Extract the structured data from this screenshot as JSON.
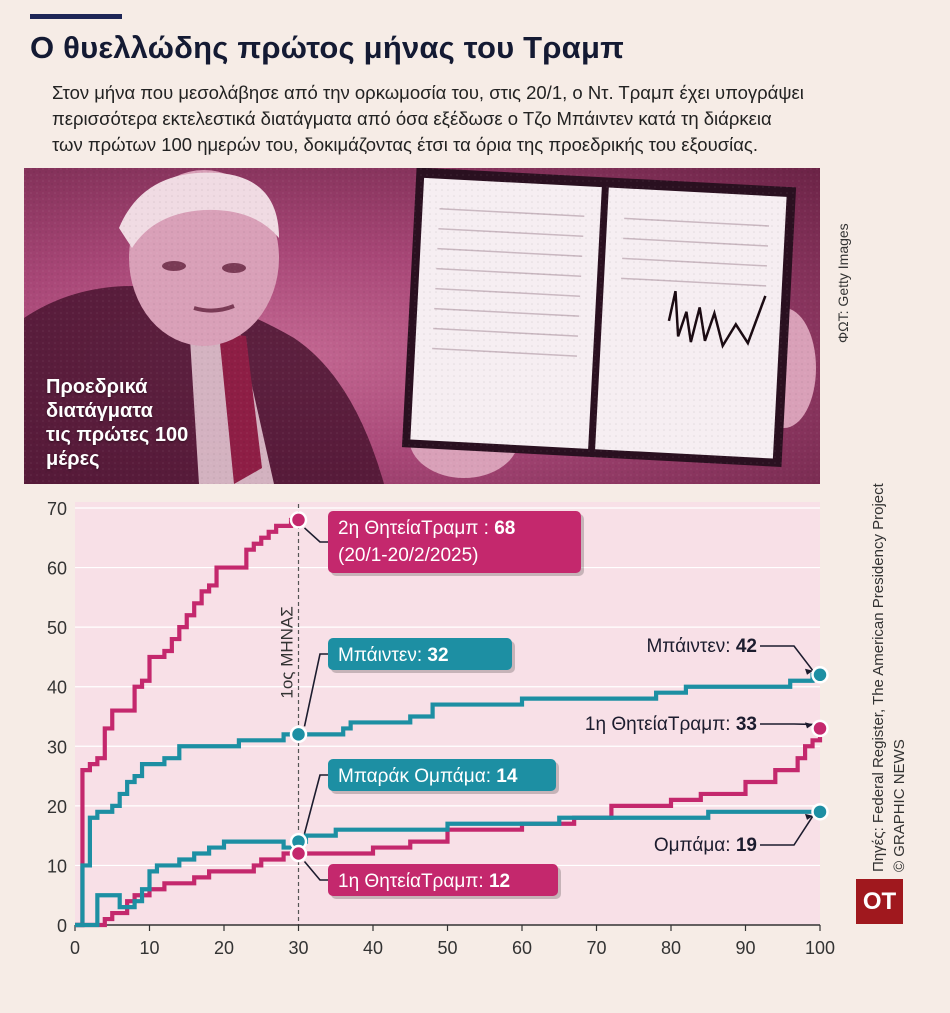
{
  "header": {
    "title": "Ο θυελλώδης πρώτος μήνας του Τραμπ",
    "subtitle_lines": [
      "Στον μήνα που μεσολάβησε από την ορκωμοσία του, στις 20/1, ο Ντ. Τραμπ έχει υπογράψει",
      "περισσότερα εκτελεστικά διατάγματα από όσα εξέδωσε  ο Τζο Μπάιντεν κατά τη διάρκεια",
      "των πρώτων  100 ημερών του, δοκιμάζοντας έτσι τα όρια της προεδρικής του εξουσίας."
    ]
  },
  "photo": {
    "label_lines": [
      "Προεδρικά",
      "διατάγματα",
      "τις πρώτες 100",
      "μέρες"
    ],
    "credit": "ΦΩΤ: Getty Images",
    "signature": "Donald Trump"
  },
  "sources": {
    "line1": "Πηγές: Federal Register, The American Presidency Project",
    "line2": "© GRAPHIC NEWS"
  },
  "logo": "OT",
  "colors": {
    "trump": "#c4286d",
    "teal": "#1d8fa3",
    "dark": "#1d2556",
    "plot_bg": "#f8e0e7"
  },
  "chart_data": {
    "type": "line",
    "xlim": [
      0,
      100
    ],
    "ylim": [
      0,
      70
    ],
    "xticks": [
      0,
      10,
      20,
      30,
      40,
      50,
      60,
      70,
      80,
      90,
      100
    ],
    "yticks": [
      0,
      10,
      20,
      30,
      40,
      50,
      60,
      70
    ],
    "grid": true,
    "marker_line": {
      "x": 30,
      "label": "1ος ΜΗΝΑΣ"
    },
    "series": [
      {
        "key": "trump2",
        "color": "#c4286d",
        "points": [
          [
            0,
            0
          ],
          [
            1,
            26
          ],
          [
            2,
            27
          ],
          [
            3,
            28
          ],
          [
            4,
            33
          ],
          [
            5,
            36
          ],
          [
            7,
            36
          ],
          [
            8,
            40
          ],
          [
            9,
            41
          ],
          [
            10,
            45
          ],
          [
            12,
            46
          ],
          [
            13,
            48
          ],
          [
            14,
            50
          ],
          [
            15,
            52
          ],
          [
            16,
            54
          ],
          [
            17,
            56
          ],
          [
            18,
            57
          ],
          [
            19,
            60
          ],
          [
            22,
            60
          ],
          [
            23,
            63
          ],
          [
            24,
            64
          ],
          [
            25,
            65
          ],
          [
            26,
            66
          ],
          [
            27,
            67
          ],
          [
            29,
            68
          ],
          [
            30,
            68
          ]
        ]
      },
      {
        "key": "biden",
        "color": "#1d8fa3",
        "points": [
          [
            0,
            0
          ],
          [
            1,
            10
          ],
          [
            2,
            18
          ],
          [
            3,
            19
          ],
          [
            5,
            20
          ],
          [
            6,
            22
          ],
          [
            7,
            24
          ],
          [
            8,
            25
          ],
          [
            9,
            27
          ],
          [
            12,
            28
          ],
          [
            14,
            30
          ],
          [
            20,
            30
          ],
          [
            22,
            31
          ],
          [
            27,
            31
          ],
          [
            28,
            32
          ],
          [
            30,
            32
          ],
          [
            36,
            33
          ],
          [
            37,
            34
          ],
          [
            45,
            35
          ],
          [
            48,
            37
          ],
          [
            60,
            38
          ],
          [
            78,
            39
          ],
          [
            82,
            40
          ],
          [
            96,
            41
          ],
          [
            99,
            42
          ],
          [
            100,
            42
          ]
        ]
      },
      {
        "key": "trump1",
        "color": "#c4286d",
        "points": [
          [
            0,
            0
          ],
          [
            3,
            0
          ],
          [
            4,
            1
          ],
          [
            5,
            2
          ],
          [
            7,
            4
          ],
          [
            8,
            5
          ],
          [
            10,
            6
          ],
          [
            11,
            6
          ],
          [
            12,
            7
          ],
          [
            15,
            7
          ],
          [
            16,
            8
          ],
          [
            18,
            9
          ],
          [
            22,
            9
          ],
          [
            24,
            10
          ],
          [
            25,
            11
          ],
          [
            28,
            12
          ],
          [
            30,
            12
          ],
          [
            40,
            13
          ],
          [
            45,
            14
          ],
          [
            50,
            16
          ],
          [
            60,
            17
          ],
          [
            67,
            18
          ],
          [
            72,
            20
          ],
          [
            80,
            21
          ],
          [
            84,
            22
          ],
          [
            90,
            24
          ],
          [
            94,
            26
          ],
          [
            97,
            28
          ],
          [
            98,
            30
          ],
          [
            99,
            31
          ],
          [
            100,
            33
          ]
        ]
      },
      {
        "key": "obama",
        "color": "#1d8fa3",
        "points": [
          [
            0,
            0
          ],
          [
            2,
            0
          ],
          [
            3,
            5
          ],
          [
            5,
            5
          ],
          [
            6,
            3
          ],
          [
            8,
            4
          ],
          [
            9,
            6
          ],
          [
            10,
            9
          ],
          [
            11,
            10
          ],
          [
            14,
            11
          ],
          [
            16,
            12
          ],
          [
            18,
            13
          ],
          [
            20,
            14
          ],
          [
            25,
            14
          ],
          [
            28,
            13
          ],
          [
            30,
            14
          ],
          [
            31,
            15
          ],
          [
            35,
            16
          ],
          [
            45,
            16
          ],
          [
            50,
            17
          ],
          [
            60,
            17
          ],
          [
            65,
            18
          ],
          [
            75,
            18
          ],
          [
            85,
            19
          ],
          [
            100,
            19
          ]
        ]
      }
    ],
    "annotations": [
      {
        "key": "trump2",
        "series": "trump2",
        "x": 30,
        "y": 68,
        "name": "2η ΘητείαΤραμπ : ",
        "value": "68",
        "line2": "(20/1-20/2/2025)",
        "style": "box"
      },
      {
        "key": "biden30",
        "series": "biden",
        "x": 30,
        "y": 32,
        "name": "Μπάιντεν: ",
        "value": "32",
        "style": "box"
      },
      {
        "key": "obama30",
        "series": "obama",
        "x": 30,
        "y": 14,
        "name": "Μπαράκ Ομπάμα: ",
        "value": "14",
        "style": "box"
      },
      {
        "key": "trump1_30",
        "series": "trump1",
        "x": 30,
        "y": 12,
        "name": "1η ΘητείαΤραμπ: ",
        "value": "12",
        "style": "box"
      },
      {
        "key": "biden100",
        "series": "biden",
        "x": 100,
        "y": 42,
        "name": "Μπάιντεν: ",
        "value": "42",
        "style": "text"
      },
      {
        "key": "trump1_100",
        "series": "trump1",
        "x": 100,
        "y": 33,
        "name": "1η ΘητείαΤραμπ: ",
        "value": "33",
        "style": "text"
      },
      {
        "key": "obama100",
        "series": "obama",
        "x": 100,
        "y": 19,
        "name": "Ομπάμα: ",
        "value": "19",
        "style": "text"
      }
    ]
  }
}
